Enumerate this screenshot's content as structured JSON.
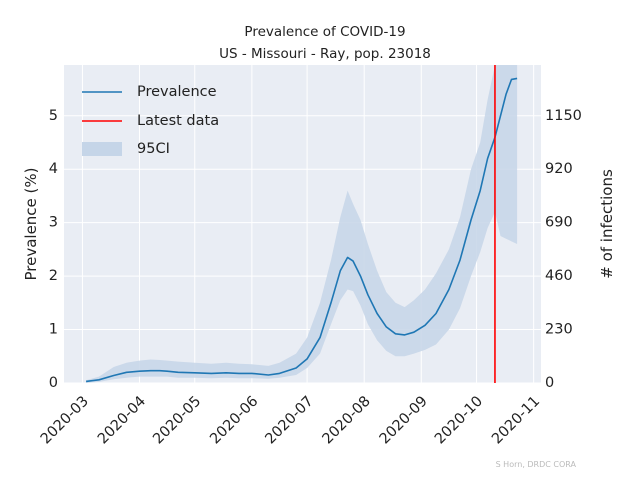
{
  "chart_data": {
    "type": "line",
    "title": "Prevalence of COVID-19",
    "subtitle": "US - Missouri - Ray, pop. 23018",
    "xlabel": "",
    "ylabel": "Prevalence (%)",
    "ylabel_right": "# of infections",
    "xlim": [
      "2020-02-20",
      "2020-11-05"
    ],
    "ylim": [
      0,
      5.95
    ],
    "x_ticks": [
      "2020-03",
      "2020-04",
      "2020-05",
      "2020-06",
      "2020-07",
      "2020-08",
      "2020-09",
      "2020-10",
      "2020-11"
    ],
    "y_ticks": [
      0,
      1,
      2,
      3,
      4,
      5
    ],
    "y_ticks_right": [
      0,
      230,
      460,
      690,
      920,
      1150
    ],
    "grid": true,
    "legend_position": "top-left",
    "colors": {
      "background": "#e9edf4",
      "grid": "#ffffff",
      "prevalence": "#1f77b4",
      "ci": "#c5d5e8",
      "latest": "#ff0000"
    },
    "series": [
      {
        "name": "Prevalence",
        "x": [
          "2020-03-03",
          "2020-03-10",
          "2020-03-18",
          "2020-03-25",
          "2020-04-01",
          "2020-04-07",
          "2020-04-12",
          "2020-04-16",
          "2020-04-22",
          "2020-05-01",
          "2020-05-10",
          "2020-05-18",
          "2020-05-25",
          "2020-06-01",
          "2020-06-10",
          "2020-06-16",
          "2020-06-25",
          "2020-07-01",
          "2020-07-08",
          "2020-07-14",
          "2020-07-19",
          "2020-07-23",
          "2020-07-26",
          "2020-07-30",
          "2020-08-03",
          "2020-08-08",
          "2020-08-13",
          "2020-08-18",
          "2020-08-23",
          "2020-08-28",
          "2020-09-03",
          "2020-09-09",
          "2020-09-16",
          "2020-09-22",
          "2020-09-28",
          "2020-10-03",
          "2020-10-07",
          "2020-10-11",
          "2020-10-14",
          "2020-10-17",
          "2020-10-20",
          "2020-10-23"
        ],
        "y": [
          0.03,
          0.06,
          0.14,
          0.2,
          0.22,
          0.23,
          0.23,
          0.22,
          0.2,
          0.19,
          0.18,
          0.19,
          0.18,
          0.18,
          0.15,
          0.18,
          0.28,
          0.45,
          0.85,
          1.5,
          2.1,
          2.35,
          2.28,
          2.0,
          1.65,
          1.3,
          1.05,
          0.92,
          0.9,
          0.95,
          1.08,
          1.3,
          1.75,
          2.3,
          3.05,
          3.6,
          4.2,
          4.6,
          5.0,
          5.4,
          5.68,
          5.7
        ]
      },
      {
        "name": "95CI",
        "x": [
          "2020-03-03",
          "2020-03-10",
          "2020-03-18",
          "2020-03-25",
          "2020-04-01",
          "2020-04-07",
          "2020-04-12",
          "2020-04-16",
          "2020-04-22",
          "2020-05-01",
          "2020-05-10",
          "2020-05-18",
          "2020-05-25",
          "2020-06-01",
          "2020-06-10",
          "2020-06-16",
          "2020-06-25",
          "2020-07-01",
          "2020-07-08",
          "2020-07-14",
          "2020-07-19",
          "2020-07-23",
          "2020-07-26",
          "2020-07-30",
          "2020-08-03",
          "2020-08-08",
          "2020-08-13",
          "2020-08-18",
          "2020-08-23",
          "2020-08-28",
          "2020-09-03",
          "2020-09-09",
          "2020-09-16",
          "2020-09-22",
          "2020-09-28",
          "2020-10-03",
          "2020-10-07",
          "2020-10-11",
          "2020-10-14",
          "2020-10-17",
          "2020-10-20",
          "2020-10-23"
        ],
        "lower": [
          0.0,
          0.02,
          0.07,
          0.1,
          0.12,
          0.12,
          0.12,
          0.12,
          0.1,
          0.1,
          0.09,
          0.1,
          0.09,
          0.09,
          0.08,
          0.1,
          0.15,
          0.28,
          0.55,
          1.1,
          1.55,
          1.75,
          1.72,
          1.45,
          1.1,
          0.8,
          0.6,
          0.5,
          0.5,
          0.55,
          0.62,
          0.72,
          1.0,
          1.4,
          2.0,
          2.45,
          2.9,
          3.2,
          2.75,
          2.7,
          2.65,
          2.6
        ],
        "upper": [
          0.05,
          0.12,
          0.3,
          0.38,
          0.42,
          0.44,
          0.43,
          0.42,
          0.4,
          0.38,
          0.36,
          0.38,
          0.36,
          0.35,
          0.32,
          0.38,
          0.55,
          0.85,
          1.5,
          2.3,
          3.1,
          3.6,
          3.35,
          3.05,
          2.6,
          2.1,
          1.7,
          1.5,
          1.42,
          1.55,
          1.75,
          2.05,
          2.5,
          3.1,
          4.0,
          4.5,
          5.3,
          5.95,
          5.95,
          5.95,
          5.95,
          5.95
        ]
      }
    ],
    "latest_data": {
      "name": "Latest data",
      "x": "2020-10-11"
    },
    "legend": [
      "Prevalence",
      "Latest data",
      "95CI"
    ],
    "credit": "S Horn, DRDC CORA"
  }
}
